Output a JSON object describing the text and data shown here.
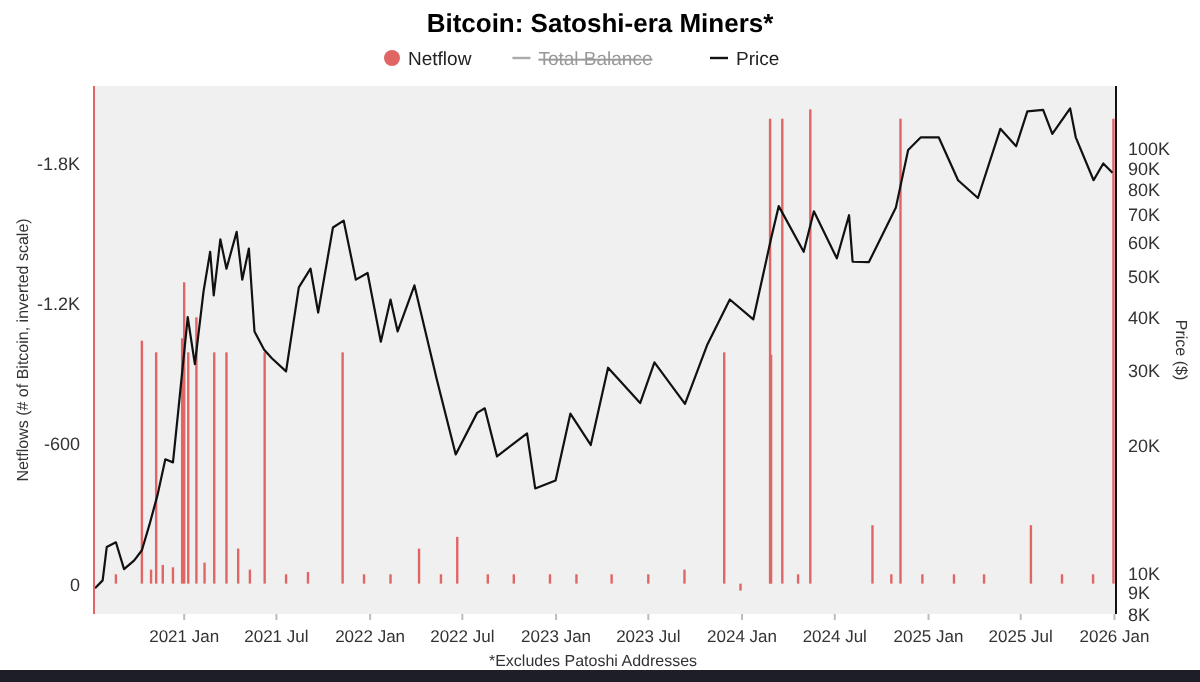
{
  "chart_data": {
    "type": "bar",
    "title": "Bitcoin: Satoshi-era Miners*",
    "ylabel": "Netflows (# of Bitcoin, inverted scale)",
    "y2label": "Price ($)",
    "annotations": [
      "*Excludes Patoshi Addresses"
    ],
    "xlim": [
      "2020-07-08",
      "2026-01-04"
    ],
    "xticks": [
      {
        "value": "2021-01-01",
        "label": "2021 Jan"
      },
      {
        "value": "2021-07-01",
        "label": "2021 Jul"
      },
      {
        "value": "2022-01-01",
        "label": "2022 Jan"
      },
      {
        "value": "2022-07-01",
        "label": "2022 Jul"
      },
      {
        "value": "2023-01-01",
        "label": "2023 Jan"
      },
      {
        "value": "2023-07-01",
        "label": "2023 Jul"
      },
      {
        "value": "2024-01-01",
        "label": "2024 Jan"
      },
      {
        "value": "2024-07-01",
        "label": "2024 Jul"
      },
      {
        "value": "2025-01-01",
        "label": "2025 Jan"
      },
      {
        "value": "2025-07-01",
        "label": "2025 Jul"
      },
      {
        "value": "2026-01-01",
        "label": "2026 Jan"
      }
    ],
    "ylim": [
      130,
      -2130
    ],
    "yticks": [
      0,
      -600,
      {
        "value": -1200,
        "label": "-1.2K"
      },
      {
        "value": -1800,
        "label": "-1.8K"
      }
    ],
    "y2lim": [
      8000,
      140000
    ],
    "y2ticks": [
      {
        "value": 8000,
        "label": "8K"
      },
      {
        "value": 9000,
        "label": "9K"
      },
      {
        "value": 10000,
        "label": "10K"
      },
      {
        "value": 20000,
        "label": "20K"
      },
      {
        "value": 30000,
        "label": "30K"
      },
      {
        "value": 40000,
        "label": "40K"
      },
      {
        "value": 50000,
        "label": "50K"
      },
      {
        "value": 60000,
        "label": "60K"
      },
      {
        "value": 70000,
        "label": "70K"
      },
      {
        "value": 80000,
        "label": "80K"
      },
      {
        "value": 90000,
        "label": "90K"
      },
      {
        "value": 100000,
        "label": "100K"
      }
    ],
    "log": "y2",
    "grid": false,
    "legend": "top",
    "series": [
      {
        "name": "Netflow",
        "color": "#e06666",
        "x": [
          "2020-08-20",
          "2020-10-10",
          "2020-10-28",
          "2020-11-07",
          "2020-11-20",
          "2020-12-10",
          "2020-12-28",
          "2021-01-01",
          "2021-01-09",
          "2021-01-25",
          "2021-02-10",
          "2021-03-01",
          "2021-03-25",
          "2021-04-17",
          "2021-05-10",
          "2021-06-08",
          "2021-07-20",
          "2021-09-01",
          "2021-11-08",
          "2021-12-20",
          "2022-02-10",
          "2022-04-07",
          "2022-05-20",
          "2022-06-21",
          "2022-08-20",
          "2022-10-10",
          "2022-12-20",
          "2023-02-10",
          "2023-04-20",
          "2023-07-01",
          "2023-09-10",
          "2023-11-27",
          "2023-12-29",
          "2024-02-25",
          "2024-02-27",
          "2024-03-20",
          "2024-04-20",
          "2024-05-14",
          "2024-09-13",
          "2024-10-20",
          "2024-11-07",
          "2024-12-20",
          "2025-02-20",
          "2025-04-20",
          "2025-07-21",
          "2025-09-20",
          "2025-11-20",
          "2025-12-30"
        ],
        "values": [
          -40,
          -1040,
          -60,
          -990,
          -80,
          -70,
          -1050,
          -1290,
          -990,
          -1140,
          -90,
          -990,
          -990,
          -150,
          -60,
          -990,
          -40,
          -50,
          -990,
          -40,
          -40,
          -150,
          -40,
          -200,
          -40,
          -40,
          -40,
          -40,
          -40,
          -40,
          -60,
          -990,
          30,
          -1990,
          -980,
          -1990,
          -40,
          -2030,
          -250,
          -40,
          -1990,
          -40,
          -40,
          -40,
          -250,
          -40,
          -40,
          -1990
        ]
      },
      {
        "name": "Total Balance",
        "type": "line",
        "color": "#aaaaaa"
      },
      {
        "name": "Price",
        "type": "line",
        "axis": "y2",
        "color": "#111111",
        "x": [
          "2020-07-10",
          "2020-07-25",
          "2020-08-02",
          "2020-08-20",
          "2020-09-05",
          "2020-09-25",
          "2020-10-10",
          "2020-10-25",
          "2020-11-10",
          "2020-11-25",
          "2020-12-10",
          "2020-12-20",
          "2021-01-08",
          "2021-01-22",
          "2021-02-08",
          "2021-02-21",
          "2021-02-28",
          "2021-03-13",
          "2021-03-25",
          "2021-04-14",
          "2021-04-25",
          "2021-05-08",
          "2021-05-19",
          "2021-06-07",
          "2021-06-22",
          "2021-07-20",
          "2021-08-14",
          "2021-09-06",
          "2021-09-21",
          "2021-10-20",
          "2021-11-10",
          "2021-12-04",
          "2021-12-27",
          "2022-01-22",
          "2022-02-10",
          "2022-02-24",
          "2022-03-29",
          "2022-05-12",
          "2022-06-18",
          "2022-07-30",
          "2022-08-14",
          "2022-09-07",
          "2022-11-05",
          "2022-11-21",
          "2022-12-31",
          "2023-01-29",
          "2023-03-10",
          "2023-04-13",
          "2023-06-15",
          "2023-07-13",
          "2023-09-11",
          "2023-10-25",
          "2023-12-08",
          "2024-01-23",
          "2024-02-28",
          "2024-03-13",
          "2024-05-01",
          "2024-05-21",
          "2024-07-05",
          "2024-07-29",
          "2024-08-05",
          "2024-09-06",
          "2024-10-29",
          "2024-11-22",
          "2024-12-17",
          "2025-01-21",
          "2025-02-28",
          "2025-04-08",
          "2025-05-22",
          "2025-06-22",
          "2025-07-14",
          "2025-08-14",
          "2025-09-01",
          "2025-10-06",
          "2025-10-17",
          "2025-11-21",
          "2025-12-10",
          "2025-12-28"
        ],
        "values": [
          9200,
          9600,
          11500,
          11800,
          10200,
          10700,
          11300,
          13000,
          15300,
          18500,
          18200,
          23800,
          40000,
          31000,
          46000,
          57000,
          45000,
          61000,
          52000,
          63500,
          49000,
          58000,
          37000,
          33500,
          32000,
          29800,
          47000,
          52000,
          41000,
          65000,
          67500,
          49000,
          50800,
          35000,
          44000,
          37000,
          47500,
          28500,
          19000,
          23800,
          24400,
          18800,
          21300,
          15800,
          16500,
          23700,
          20000,
          30400,
          25100,
          31300,
          25000,
          34500,
          44000,
          39500,
          62000,
          73000,
          57000,
          71000,
          55000,
          69500,
          54000,
          53900,
          72500,
          99000,
          106000,
          106000,
          84000,
          76300,
          111000,
          101000,
          122000,
          123000,
          108000,
          124000,
          106000,
          84000,
          92000,
          87500
        ]
      }
    ]
  }
}
